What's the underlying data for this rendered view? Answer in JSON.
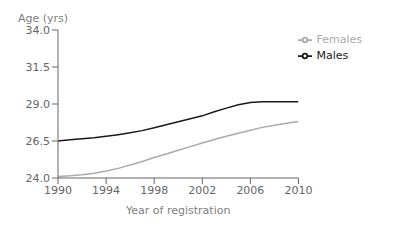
{
  "chart_data": {
    "type": "line",
    "xlabel": "Year of registration",
    "ylabel": "Age (yrs)",
    "x": [
      1990,
      1991,
      1992,
      1993,
      1994,
      1995,
      1996,
      1997,
      1998,
      1999,
      2000,
      2001,
      2002,
      2003,
      2004,
      2005,
      2006,
      2007,
      2008,
      2009,
      2010
    ],
    "series": [
      {
        "name": "Males",
        "color": "#1a1a1a",
        "values": [
          26.5,
          26.58,
          26.65,
          26.72,
          26.82,
          26.93,
          27.05,
          27.2,
          27.4,
          27.6,
          27.8,
          28.0,
          28.2,
          28.48,
          28.72,
          28.95,
          29.1,
          29.15,
          29.15,
          29.15,
          29.15
        ]
      },
      {
        "name": "Females",
        "color": "#aaaaaa",
        "values": [
          24.1,
          24.15,
          24.22,
          24.32,
          24.47,
          24.65,
          24.88,
          25.12,
          25.38,
          25.62,
          25.87,
          26.12,
          26.37,
          26.6,
          26.82,
          27.02,
          27.22,
          27.42,
          27.57,
          27.7,
          27.82
        ]
      }
    ],
    "xlim": [
      1990,
      2010
    ],
    "ylim": [
      24.0,
      34.0
    ],
    "xticks": [
      1990,
      1994,
      1998,
      2002,
      2006,
      2010
    ],
    "yticks": [
      {
        "value": 24.0,
        "label": "24.0"
      },
      26.5,
      {
        "value": 29.0,
        "label": "29.0"
      },
      31.5,
      {
        "value": 34.0,
        "label": "34.0"
      }
    ],
    "grid": false,
    "legend": "upper right"
  }
}
